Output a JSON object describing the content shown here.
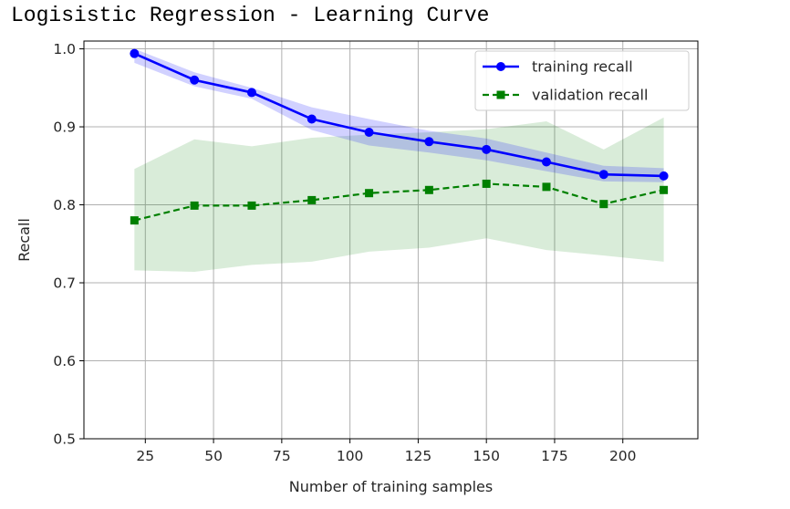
{
  "page": {
    "title": "Logisistic Regression - Learning Curve"
  },
  "chart_data": {
    "type": "line",
    "title": "Logisistic Regression - Learning Curve",
    "xlabel": "Number of training samples",
    "ylabel": "Recall",
    "xlim": [
      2.5,
      227.5
    ],
    "ylim": [
      0.5,
      1.01
    ],
    "xticks": [
      25,
      50,
      75,
      100,
      125,
      150,
      175,
      200
    ],
    "yticks": [
      0.5,
      0.6,
      0.7,
      0.8,
      0.9,
      1.0
    ],
    "grid": true,
    "legend_position": "top-right",
    "x": [
      21,
      43,
      64,
      86,
      107,
      129,
      150,
      172,
      193,
      215
    ],
    "series": [
      {
        "name": "training recall",
        "style": "solid",
        "marker": "circle",
        "color": "#0000ff",
        "values": [
          0.994,
          0.96,
          0.944,
          0.91,
          0.893,
          0.881,
          0.871,
          0.855,
          0.839,
          0.837
        ],
        "band_upper": [
          1.0,
          0.97,
          0.95,
          0.925,
          0.91,
          0.895,
          0.885,
          0.867,
          0.85,
          0.847
        ],
        "band_lower": [
          0.982,
          0.952,
          0.936,
          0.896,
          0.876,
          0.867,
          0.857,
          0.843,
          0.83,
          0.829
        ]
      },
      {
        "name": "validation recall",
        "style": "dashed",
        "marker": "square",
        "color": "#008000",
        "values": [
          0.78,
          0.799,
          0.799,
          0.806,
          0.815,
          0.819,
          0.827,
          0.823,
          0.801,
          0.819
        ],
        "band_upper": [
          0.846,
          0.884,
          0.875,
          0.886,
          0.89,
          0.893,
          0.897,
          0.907,
          0.871,
          0.912
        ],
        "band_lower": [
          0.716,
          0.714,
          0.723,
          0.727,
          0.74,
          0.745,
          0.757,
          0.742,
          0.735,
          0.727
        ]
      }
    ]
  },
  "colors": {
    "training": "#0000ff",
    "validation": "#008000",
    "grid": "#b0b0b0",
    "axes": "#000000"
  }
}
